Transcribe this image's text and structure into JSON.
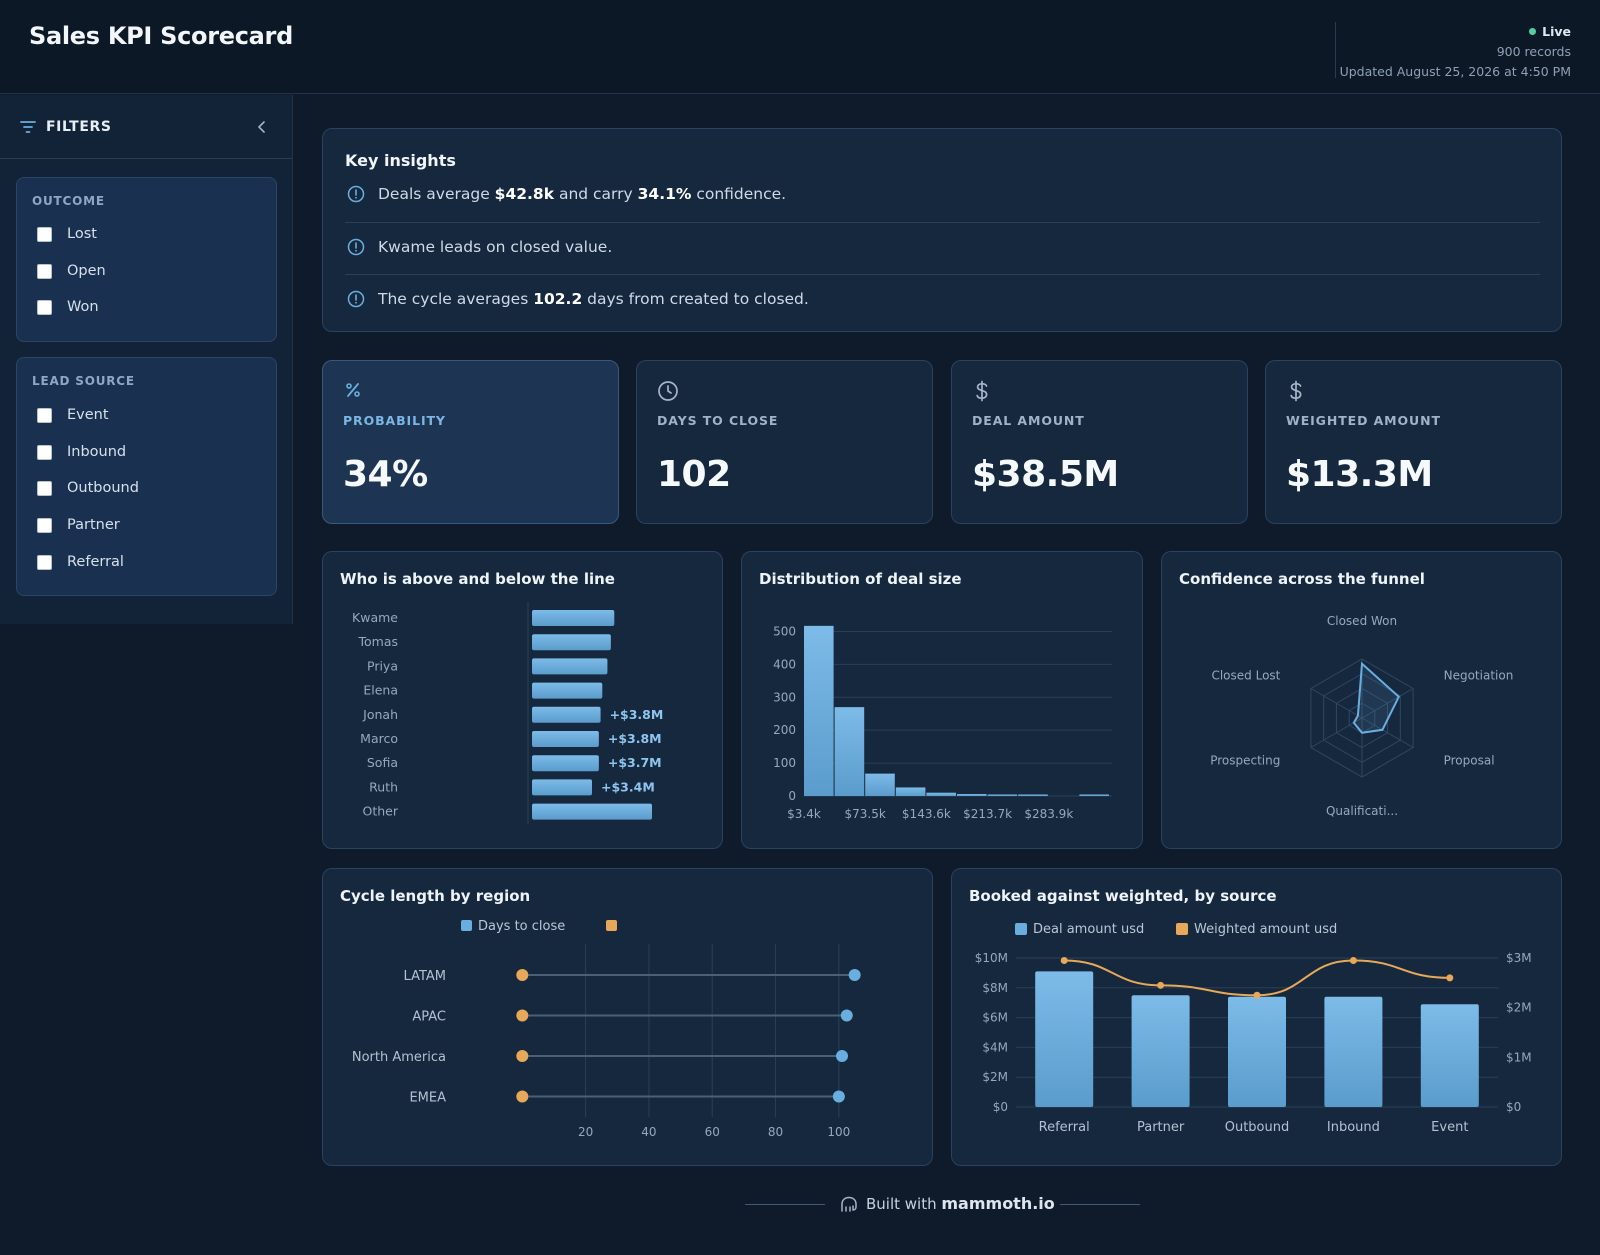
{
  "app": {
    "title": "Sales KPI Scorecard",
    "status": {
      "live": "Live",
      "records": "900 records",
      "updated": "Updated August 25, 2026 at 4:50 PM"
    }
  },
  "sidebar": {
    "title": "FILTERS",
    "groups": [
      {
        "title": "OUTCOME",
        "options": [
          "Lost",
          "Open",
          "Won"
        ]
      },
      {
        "title": "LEAD SOURCE",
        "options": [
          "Event",
          "Inbound",
          "Outbound",
          "Partner",
          "Referral"
        ]
      }
    ]
  },
  "insights": {
    "title": "Key insights",
    "items": [
      {
        "parts": [
          "Deals average ",
          "$42.8k",
          " and carry ",
          "34.1%",
          " confidence."
        ]
      },
      {
        "parts": [
          "Kwame leads on closed value."
        ]
      },
      {
        "parts": [
          "The cycle averages ",
          "102.2",
          " days from created to closed."
        ]
      }
    ]
  },
  "kpis": [
    {
      "label": "PROBABILITY",
      "value": "34%",
      "icon": "percent-icon",
      "active": true
    },
    {
      "label": "DAYS TO CLOSE",
      "value": "102",
      "icon": "clock-icon",
      "active": false
    },
    {
      "label": "DEAL AMOUNT",
      "value": "$38.5M",
      "icon": "dollar-icon",
      "active": false
    },
    {
      "label": "WEIGHTED AMOUNT",
      "value": "$13.3M",
      "icon": "dollar-icon",
      "active": false
    }
  ],
  "colors": {
    "accent": "#6aaee0",
    "orange": "#e8a85a",
    "card": "#16283e",
    "grid": "#2a3f58",
    "text_muted": "#8da0b6"
  },
  "chart_data": [
    {
      "type": "bar",
      "title": "Who is above and below the line",
      "orientation": "horizontal",
      "categories": [
        "Kwame",
        "Tomas",
        "Priya",
        "Elena",
        "Jonah",
        "Marco",
        "Sofia",
        "Ruth",
        "Other"
      ],
      "values": [
        4.8,
        4.6,
        4.4,
        4.1,
        4.0,
        3.9,
        3.9,
        3.5,
        7.0
      ],
      "data_labels": [
        "",
        "",
        "",
        "",
        "+$3.8M",
        "+$3.8M",
        "+$3.7M",
        "+$3.4M",
        ""
      ]
    },
    {
      "type": "bar",
      "title": "Distribution of deal size",
      "x_tick_labels": [
        "$3.4k",
        "$73.5k",
        "$143.6k",
        "$213.7k",
        "$283.9k"
      ],
      "values": [
        517,
        270,
        68,
        26,
        10,
        6,
        2,
        1,
        0,
        1
      ],
      "y_ticks": [
        0,
        100,
        200,
        300,
        400,
        500
      ],
      "ylim": [
        0,
        550
      ]
    },
    {
      "type": "radar",
      "title": "Confidence across the funnel",
      "axes": [
        "Closed Won",
        "Negotiation",
        "Proposal",
        "Qualificati...",
        "Prospecting",
        "Closed Lost"
      ],
      "values": [
        0.92,
        0.72,
        0.4,
        0.25,
        0.16,
        0.08
      ],
      "rmax": 1
    },
    {
      "type": "dumbbell",
      "title": "Cycle length by region",
      "legend": [
        "Days to close",
        ""
      ],
      "categories": [
        "LATAM",
        "APAC",
        "North America",
        "EMEA"
      ],
      "start": [
        0,
        0,
        0,
        0
      ],
      "end": [
        105,
        102.5,
        101,
        100
      ],
      "x_ticks": [
        20,
        40,
        60,
        80,
        100
      ],
      "xlim": [
        -20,
        107
      ]
    },
    {
      "type": "bar",
      "title": "Booked against weighted, by source",
      "legend": [
        "Deal amount usd",
        "Weighted amount usd"
      ],
      "categories": [
        "Referral",
        "Partner",
        "Outbound",
        "Inbound",
        "Event"
      ],
      "series": [
        {
          "name": "Deal amount usd",
          "values": [
            9.1,
            7.5,
            7.4,
            7.4,
            6.9
          ],
          "axis": "left",
          "kind": "bar"
        },
        {
          "name": "Weighted amount usd",
          "values": [
            2.95,
            2.45,
            2.25,
            2.95,
            2.6
          ],
          "axis": "right",
          "kind": "line"
        }
      ],
      "y_left_ticks": [
        "$0",
        "$2M",
        "$4M",
        "$6M",
        "$8M",
        "$10M"
      ],
      "y_right_ticks": [
        "$0",
        "$1M",
        "$2M",
        "$3M"
      ],
      "ylim_left": [
        0,
        10
      ],
      "ylim_right": [
        0,
        3
      ]
    }
  ],
  "footer": {
    "prefix": "Built with ",
    "brand": "mammoth.io"
  }
}
